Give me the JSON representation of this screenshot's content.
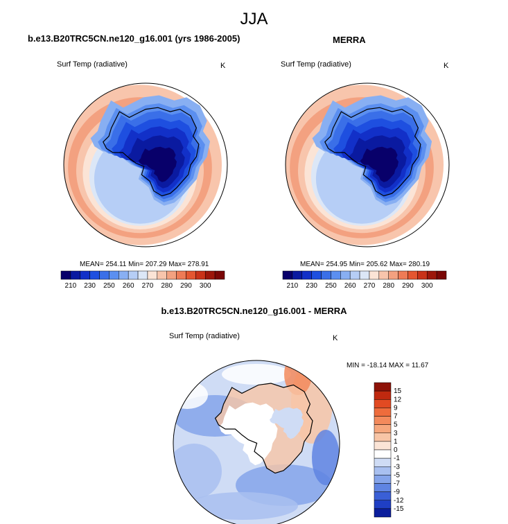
{
  "season": "JJA",
  "colors": {
    "ramp": [
      "#08006a",
      "#0a1aa0",
      "#1230c8",
      "#1e4fe0",
      "#3a6fe8",
      "#5b8ff0",
      "#88aff2",
      "#b6cef6",
      "#dce7f7",
      "#fbe4d6",
      "#f8c5ac",
      "#f3a180",
      "#ee7b56",
      "#e45630",
      "#c93218",
      "#9c160a",
      "#7a0706"
    ],
    "coast": "#000000",
    "ring": "#ffffff"
  },
  "chart_data": [
    {
      "type": "map",
      "projection": "south polar stereographic",
      "title": "b.e13.B20TRC5CN.ne120_g16.001 (yrs 1986-2005)",
      "variable": "Surf Temp (radiative)",
      "units": "K",
      "stats": "MEAN= 254.11  Min= 207.29  Max= 278.91",
      "mean": 254.11,
      "min": 207.29,
      "max": 278.91,
      "colorbar_ticks": [
        "210",
        "230",
        "250",
        "260",
        "270",
        "280",
        "290",
        "300"
      ]
    },
    {
      "type": "map",
      "projection": "south polar stereographic",
      "title": "MERRA",
      "variable": "Surf Temp (radiative)",
      "units": "K",
      "stats": "MEAN= 254.95  Min= 205.62  Max= 280.19",
      "mean": 254.95,
      "min": 205.62,
      "max": 280.19,
      "colorbar_ticks": [
        "210",
        "230",
        "250",
        "260",
        "270",
        "280",
        "290",
        "300"
      ]
    },
    {
      "type": "map",
      "projection": "south polar stereographic",
      "title": "b.e13.B20TRC5CN.ne120_g16.001 - MERRA",
      "variable": "Surf Temp (radiative)",
      "units": "K",
      "stats": "MIN = -18.14 MAX =  11.67",
      "min": -18.14,
      "max": 11.67,
      "colorbar_ticks": [
        "15",
        "12",
        "9",
        "7",
        "5",
        "3",
        "1",
        "0",
        "-1",
        "-3",
        "-5",
        "-7",
        "-9",
        "-12",
        "-15"
      ],
      "colorbar_colors": [
        "#8e1208",
        "#c0290f",
        "#e24a22",
        "#ee6c3c",
        "#f38a5c",
        "#f6a77d",
        "#f8c5a6",
        "#fbe4d6",
        "#ffffff",
        "#cfdcf5",
        "#a9c0f0",
        "#85a4ea",
        "#5f84e2",
        "#3a5fd6",
        "#1f3fc4",
        "#0b1e9c"
      ]
    }
  ]
}
